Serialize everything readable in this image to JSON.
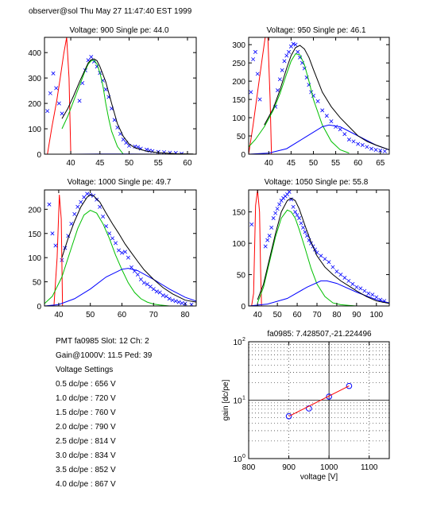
{
  "header": "observer@sol Thu May 27 11:47:40 EST 1999",
  "chart_data": [
    {
      "type": "line",
      "title": "Voltage: 900 Single pe: 44.0",
      "xlim": [
        35.5,
        61.5
      ],
      "ylim": [
        0,
        460
      ],
      "xticks": [
        40,
        45,
        50,
        55,
        60
      ],
      "yticks": [
        0,
        100,
        200,
        300,
        400
      ],
      "series": [
        {
          "kind": "markers",
          "color": "#0000ff",
          "x": [
            36,
            36.5,
            37,
            37.5,
            38,
            38.5,
            41.5,
            42,
            42.5,
            43,
            43.5,
            44,
            44.5,
            45,
            45.5,
            46,
            46.5,
            47,
            47.5,
            48,
            48.5,
            49,
            49.5,
            50,
            51,
            51.5,
            52,
            53,
            53.5,
            54,
            55,
            56,
            57,
            58,
            59
          ],
          "y": [
            170,
            240,
            318,
            260,
            200,
            160,
            210,
            280,
            330,
            370,
            383,
            365,
            345,
            320,
            290,
            255,
            225,
            180,
            135,
            105,
            80,
            58,
            45,
            33,
            30,
            28,
            22,
            18,
            14,
            12,
            9,
            8,
            6,
            5,
            2
          ]
        },
        {
          "kind": "line",
          "color": "#ff0000",
          "x": [
            36,
            36.8,
            37.6,
            38.2,
            38.8,
            39.3,
            39.7,
            40.0
          ],
          "y": [
            0,
            110,
            210,
            300,
            395,
            460,
            300,
            0
          ]
        },
        {
          "kind": "line",
          "color": "#00c000",
          "x": [
            38.5,
            39.5,
            40.5,
            41.5,
            42.5,
            43,
            43.5,
            44,
            44.5,
            45,
            45.5,
            46,
            46.5,
            47,
            48,
            49
          ],
          "y": [
            100,
            150,
            210,
            270,
            330,
            355,
            368,
            370,
            355,
            320,
            270,
            200,
            140,
            90,
            30,
            0
          ]
        },
        {
          "kind": "line",
          "color": "#000000",
          "x": [
            38.5,
            39.5,
            40.5,
            41.5,
            42.5,
            43,
            43.5,
            44,
            44.5,
            45,
            46,
            47,
            48,
            49,
            50,
            51,
            53,
            55,
            58,
            61
          ],
          "y": [
            140,
            180,
            230,
            285,
            335,
            360,
            372,
            375,
            368,
            345,
            285,
            200,
            120,
            70,
            40,
            25,
            12,
            6,
            2,
            1
          ]
        },
        {
          "kind": "line",
          "color": "#0000ff",
          "x": [
            35.5,
            40,
            45,
            50,
            55,
            61.5
          ],
          "y": [
            0,
            0,
            1,
            1,
            0,
            0
          ]
        }
      ]
    },
    {
      "type": "line",
      "title": "Voltage: 950 Single pe: 46.1",
      "xlim": [
        35.5,
        67
      ],
      "ylim": [
        0,
        320
      ],
      "xticks": [
        40,
        45,
        50,
        55,
        60,
        65
      ],
      "yticks": [
        0,
        50,
        100,
        150,
        200,
        250,
        300
      ],
      "series": [
        {
          "kind": "markers",
          "color": "#0000ff",
          "x": [
            36,
            36.5,
            37,
            37.5,
            38,
            41.5,
            42,
            42.5,
            43,
            43.5,
            44,
            44.5,
            45,
            45.5,
            46,
            46.5,
            47,
            47.5,
            48,
            48.5,
            49,
            49.5,
            50,
            51,
            52,
            53,
            54,
            55,
            56,
            57,
            58,
            59,
            60,
            61,
            62,
            63,
            64,
            65,
            66
          ],
          "y": [
            170,
            260,
            280,
            220,
            150,
            130,
            175,
            205,
            230,
            255,
            270,
            280,
            295,
            302,
            300,
            280,
            265,
            250,
            235,
            210,
            190,
            170,
            160,
            145,
            120,
            105,
            90,
            75,
            68,
            55,
            40,
            35,
            28,
            25,
            20,
            15,
            12,
            10,
            8
          ]
        },
        {
          "kind": "line",
          "color": "#ff0000",
          "x": [
            35.5,
            36.5,
            37.5,
            38.5,
            39.2,
            39.8,
            40.3,
            40.6
          ],
          "y": [
            0,
            80,
            170,
            260,
            320,
            320,
            150,
            0
          ]
        },
        {
          "kind": "line",
          "color": "#00c000",
          "x": [
            35.5,
            37,
            39,
            41,
            42.5,
            44,
            45,
            46,
            47,
            48,
            49,
            50,
            52,
            54,
            56,
            58
          ],
          "y": [
            20,
            40,
            75,
            120,
            165,
            220,
            255,
            275,
            272,
            245,
            200,
            150,
            80,
            35,
            12,
            3
          ]
        },
        {
          "kind": "line",
          "color": "#0000ff",
          "x": [
            35.5,
            40,
            44,
            48,
            52,
            53.5,
            56,
            60,
            64,
            67
          ],
          "y": [
            0,
            3,
            15,
            45,
            75,
            80,
            75,
            50,
            25,
            12
          ]
        },
        {
          "kind": "line",
          "color": "#000000",
          "x": [
            39,
            41,
            42.5,
            44,
            45,
            46,
            47,
            48,
            49,
            50,
            52,
            54,
            56,
            58,
            60,
            62,
            64,
            67
          ],
          "y": [
            80,
            125,
            175,
            235,
            270,
            292,
            298,
            288,
            265,
            232,
            170,
            130,
            100,
            75,
            50,
            35,
            25,
            12
          ]
        }
      ]
    },
    {
      "type": "line",
      "title": "Voltage: 1000 Single pe: 49.7",
      "xlim": [
        35.5,
        83.5
      ],
      "ylim": [
        0,
        240
      ],
      "xticks": [
        40,
        50,
        60,
        70,
        80
      ],
      "yticks": [
        0,
        50,
        100,
        150,
        200
      ],
      "series": [
        {
          "kind": "markers",
          "color": "#0000ff",
          "x": [
            37,
            38,
            39,
            41,
            42,
            43,
            44,
            45,
            46,
            47,
            48,
            49,
            50,
            51,
            52,
            53,
            54,
            55,
            56,
            57,
            58,
            59,
            60,
            61,
            62,
            63,
            64,
            65,
            66,
            67,
            68,
            69,
            70,
            71,
            72,
            73,
            74,
            75,
            76,
            77,
            78,
            79,
            80,
            82
          ],
          "y": [
            210,
            150,
            125,
            95,
            120,
            145,
            170,
            190,
            205,
            215,
            225,
            232,
            230,
            228,
            220,
            205,
            185,
            165,
            150,
            140,
            130,
            115,
            110,
            112,
            100,
            80,
            72,
            65,
            55,
            48,
            45,
            40,
            35,
            30,
            28,
            22,
            20,
            15,
            12,
            10,
            8,
            6,
            5,
            3
          ]
        },
        {
          "kind": "line",
          "color": "#ff0000",
          "x": [
            38.5,
            39.5,
            40.2,
            40.8,
            41.2
          ],
          "y": [
            0,
            100,
            230,
            180,
            0
          ]
        },
        {
          "kind": "line",
          "color": "#00c000",
          "x": [
            35.5,
            38,
            41,
            44,
            46,
            48,
            50,
            52,
            54,
            56,
            58,
            60,
            62,
            64,
            66,
            68,
            70,
            72,
            75
          ],
          "y": [
            5,
            20,
            60,
            120,
            160,
            188,
            198,
            192,
            170,
            140,
            105,
            75,
            48,
            28,
            15,
            8,
            4,
            2,
            0
          ]
        },
        {
          "kind": "line",
          "color": "#0000ff",
          "x": [
            35.5,
            40,
            45,
            50,
            55,
            60,
            62,
            65,
            70,
            75,
            80,
            83.5
          ],
          "y": [
            0,
            3,
            15,
            35,
            60,
            76,
            78,
            73,
            55,
            35,
            18,
            10
          ]
        },
        {
          "kind": "line",
          "color": "#000000",
          "x": [
            41,
            43,
            45,
            47,
            49,
            50,
            51,
            53,
            55,
            57,
            59,
            61,
            63,
            65,
            67,
            70,
            73,
            76,
            80,
            83.5
          ],
          "y": [
            100,
            140,
            175,
            205,
            225,
            230,
            228,
            215,
            192,
            170,
            150,
            128,
            110,
            92,
            75,
            55,
            38,
            25,
            12,
            8
          ]
        }
      ]
    },
    {
      "type": "line",
      "title": "Voltage: 1050 Single pe: 55.8",
      "xlim": [
        35.5,
        106.5
      ],
      "ylim": [
        0,
        185
      ],
      "xticks": [
        40,
        50,
        60,
        70,
        80,
        90,
        100
      ],
      "yticks": [
        0,
        50,
        100,
        150
      ],
      "series": [
        {
          "kind": "markers",
          "color": "#0000ff",
          "x": [
            37,
            44,
            45,
            46,
            47,
            48,
            49,
            50,
            51,
            52,
            53,
            54,
            55,
            56,
            57,
            58,
            59,
            60,
            61,
            62,
            63,
            64,
            65,
            66,
            67,
            68,
            69,
            70,
            72,
            74,
            76,
            78,
            80,
            82,
            84,
            86,
            88,
            90,
            92,
            94,
            96,
            98,
            100,
            102,
            104
          ],
          "y": [
            130,
            95,
            105,
            112,
            125,
            140,
            148,
            155,
            162,
            168,
            172,
            175,
            178,
            182,
            170,
            158,
            150,
            145,
            140,
            132,
            125,
            118,
            112,
            105,
            100,
            95,
            90,
            85,
            80,
            75,
            70,
            62,
            55,
            50,
            45,
            40,
            35,
            30,
            28,
            24,
            20,
            18,
            14,
            10,
            8
          ]
        },
        {
          "kind": "line",
          "color": "#ff0000",
          "x": [
            37,
            38,
            39,
            40,
            41,
            41.5,
            42
          ],
          "y": [
            0,
            20,
            160,
            185,
            150,
            60,
            0
          ]
        },
        {
          "kind": "line",
          "color": "#00c000",
          "x": [
            40,
            43,
            46,
            49,
            52,
            55,
            57,
            59,
            61,
            64,
            67,
            70,
            74,
            78,
            82,
            86,
            90
          ],
          "y": [
            5,
            30,
            70,
            110,
            140,
            153,
            150,
            140,
            122,
            92,
            60,
            35,
            15,
            5,
            2,
            1,
            0
          ]
        },
        {
          "kind": "line",
          "color": "#0000ff",
          "x": [
            35.5,
            45,
            55,
            65,
            72,
            75,
            80,
            90,
            100,
            106.5
          ],
          "y": [
            0,
            3,
            12,
            30,
            40,
            40,
            36,
            22,
            10,
            5
          ]
        },
        {
          "kind": "line",
          "color": "#000000",
          "x": [
            40,
            43,
            46,
            49,
            52,
            55,
            57,
            59,
            61,
            64,
            67,
            70,
            74,
            78,
            82,
            86,
            90,
            95,
            100,
            106.5
          ],
          "y": [
            10,
            35,
            75,
            115,
            150,
            168,
            172,
            168,
            155,
            128,
            102,
            80,
            62,
            50,
            40,
            32,
            24,
            15,
            8,
            4
          ]
        }
      ]
    },
    {
      "type": "scatter",
      "title": "fa0985: 7.428507,-21.224496",
      "xlabel": "voltage [V]",
      "ylabel": "gain [dc/pe]",
      "xlim": [
        800,
        1150
      ],
      "ylim": [
        1,
        100
      ],
      "yscale": "log",
      "xticks": [
        800,
        900,
        1000,
        1100
      ],
      "grid": true,
      "series": [
        {
          "kind": "circles",
          "color": "#0000ff",
          "x": [
            900,
            950,
            1000,
            1050
          ],
          "y": [
            5.3,
            7.2,
            11.5,
            17.5
          ]
        },
        {
          "kind": "line",
          "color": "#ff0000",
          "x": [
            900,
            1050
          ],
          "y": [
            5.3,
            17.5
          ]
        }
      ]
    }
  ],
  "info": {
    "pmt": "PMT fa0985 Slot: 12 Ch: 2",
    "gain": "Gain@1000V: 11.5 Ped: 39",
    "settings_title": "Voltage Settings",
    "settings": [
      "0.5 dc/pe : 656 V",
      "1.0 dc/pe : 720 V",
      "1.5 dc/pe : 760 V",
      "2.0 dc/pe : 790 V",
      "2.5 dc/pe : 814 V",
      "3.0 dc/pe : 834 V",
      "3.5 dc/pe : 852 V",
      "4.0 dc/pe : 867 V"
    ]
  }
}
